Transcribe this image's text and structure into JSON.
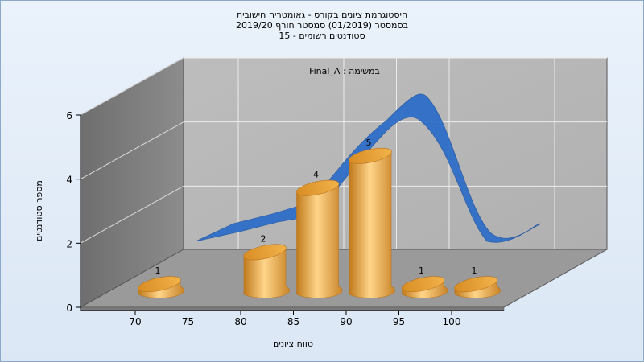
{
  "chart_title": {
    "line1": "היסטוגרמת ציונים בקורס - גאומטריה חישובית",
    "line2": "בסמסטר  (01/2019)  סמסטר חורף 2019/20",
    "line3": "סטודנטים רשומים - 15"
  },
  "chart_data": {
    "type": "bar",
    "subtitle": "במשימה : Final_A",
    "xlabel": "טווח ציונים",
    "ylabel": "מספר סטודנטים",
    "x_ticks": [
      "70",
      "75",
      "80",
      "85",
      "90",
      "95",
      "100"
    ],
    "y_ticks": [
      "0",
      "2",
      "4",
      "6"
    ],
    "ylim": [
      0,
      6
    ],
    "bars": [
      {
        "bin": "70",
        "value": 1,
        "label": "1"
      },
      {
        "bin": "80",
        "value": 2,
        "label": "2"
      },
      {
        "bin": "85",
        "value": 4,
        "label": "4"
      },
      {
        "bin": "90",
        "value": 5,
        "label": "5"
      },
      {
        "bin": "95",
        "value": 1,
        "label": "1"
      },
      {
        "bin": "100",
        "value": 1,
        "label": "1"
      }
    ],
    "series": [
      {
        "type": "bar",
        "color": "#e8a84a"
      },
      {
        "type": "smooth-curve",
        "color": "#2f6fc8"
      }
    ],
    "grid": true
  }
}
